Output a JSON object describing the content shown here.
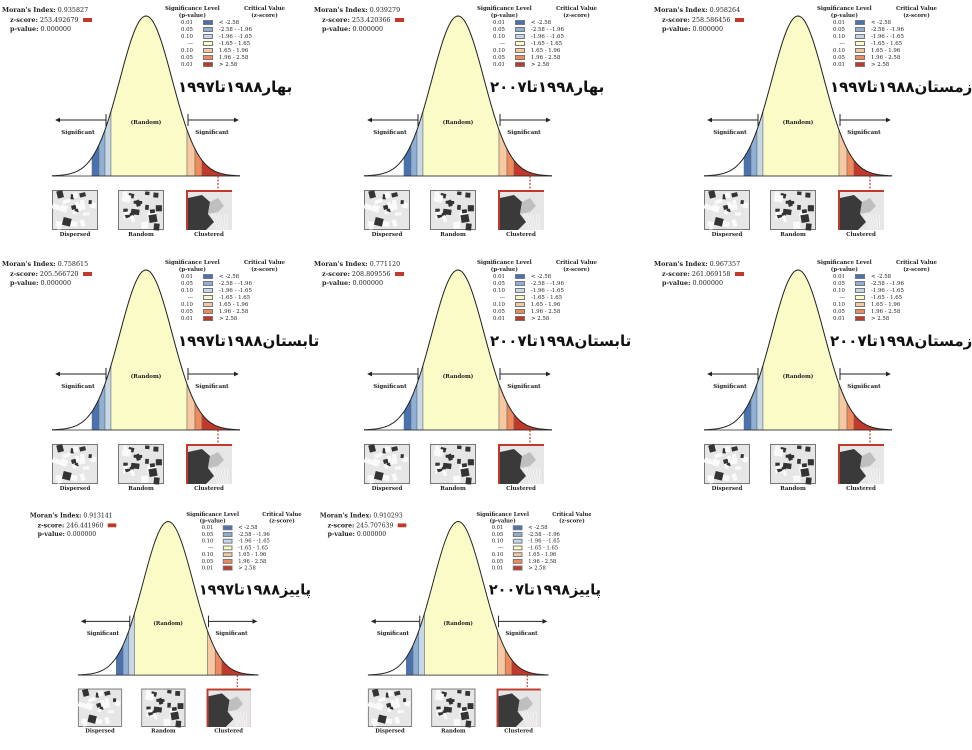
{
  "legend_header": {
    "significance": "Significance Level\n(p-value)",
    "critical": "Critical Value\n(z-score)"
  },
  "labels": {
    "moran": "Moran's Index:",
    "zscore": "z-score:",
    "pvalue": "p-value:",
    "significant": "Significant",
    "random": "(Random)",
    "dispersed": "Dispersed",
    "random_caption": "Random",
    "clustered": "Clustered"
  },
  "legend_rows": [
    {
      "p": "0.01",
      "z": "< -2.58",
      "color": "#4a72b0"
    },
    {
      "p": "0.05",
      "z": "-2.58 - -1.96",
      "color": "#8fb0d4"
    },
    {
      "p": "0.10",
      "z": "-1.96 - -1.65",
      "color": "#c6d8e8"
    },
    {
      "p": "---",
      "z": "-1.65 - 1.65",
      "color": "#fbfbc8"
    },
    {
      "p": "0.10",
      "z": "1.65 - 1.96",
      "color": "#f6c9a2"
    },
    {
      "p": "0.05",
      "z": "1.96 - 2.58",
      "color": "#ee8a5c"
    },
    {
      "p": "0.01",
      "z": "> 2.58",
      "color": "#c0392b"
    }
  ],
  "chart_data": [
    {
      "type": "moran_report",
      "title": "بهار۱۹۸۸تا۱۹۹۷",
      "moran_index": "0.935827",
      "z_score": "253.492679",
      "p_value": "0.000000"
    },
    {
      "type": "moran_report",
      "title": "بهار۱۹۹۸تا۲۰۰۷",
      "moran_index": "0.939279",
      "z_score": "253.420366",
      "p_value": "0.000000"
    },
    {
      "type": "moran_report",
      "title": "زمستان۱۹۸۸تا۱۹۹۷",
      "moran_index": "0.958264",
      "z_score": "258.586456",
      "p_value": "0.000000"
    },
    {
      "type": "moran_report",
      "title": "تابستان۱۹۸۸تا۱۹۹۷",
      "moran_index": "0.758615",
      "z_score": "205.566720",
      "p_value": "0.000000"
    },
    {
      "type": "moran_report",
      "title": "تابستان۱۹۹۸تا۲۰۰۷",
      "moran_index": "0.771120",
      "z_score": "208.809556",
      "p_value": "0.000000"
    },
    {
      "type": "moran_report",
      "title": "زمستان۱۹۹۸تا۲۰۰۷",
      "moran_index": "0.967357",
      "z_score": "261.069158",
      "p_value": "0.000000"
    },
    {
      "type": "moran_report",
      "title": "پاییز۱۹۸۸تا۱۹۹۷",
      "moran_index": "0.913141",
      "z_score": "246.441960",
      "p_value": "0.000000"
    },
    {
      "type": "moran_report",
      "title": "پاییز۱۹۹۸تا۲۰۰۷",
      "moran_index": "0.910293",
      "z_score": "245.707639",
      "p_value": "0.000000"
    }
  ]
}
